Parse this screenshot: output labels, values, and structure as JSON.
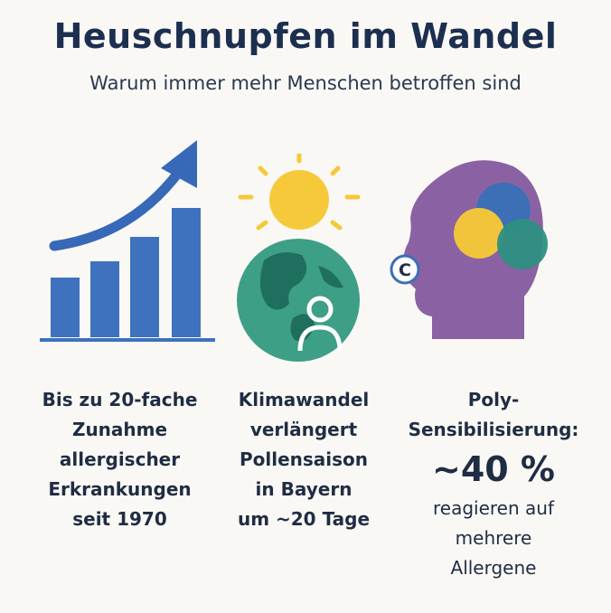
{
  "header": {
    "title": "Heuschnupfen im Wandel",
    "subtitle": "Warum immer mehr Menschen betroffen sind"
  },
  "colors": {
    "bar_blue": "#3e72bf",
    "arrow_blue": "#3868b8",
    "sun_yellow": "#f5c93a",
    "globe_teal": "#3d9f86",
    "globe_land": "#1f6f5e",
    "head_purple": "#8a62a3",
    "circle_blue": "#3c6fb5",
    "circle_yellow": "#f2c43c",
    "circle_teal": "#2e8f82"
  },
  "panels": [
    {
      "icon": "rising-bar-chart-icon",
      "caption": [
        "Bis zu 20-fache",
        "Zunahme",
        "allergischer",
        "Erkrankungen",
        "seit 1970"
      ]
    },
    {
      "icon": "sun-over-globe-person-icon",
      "caption": [
        "Klimawandel",
        "verlängert",
        "Pollensaison",
        "in Bayern",
        "um ~20 Tage"
      ]
    },
    {
      "icon": "head-allergen-circles-icon",
      "badge": "C",
      "caption_top": [
        "Poly-",
        "Sensibilisierung:"
      ],
      "big_value": "~40 %",
      "caption_bottom": [
        "reagieren auf",
        "mehrere",
        "Allergene"
      ]
    }
  ]
}
